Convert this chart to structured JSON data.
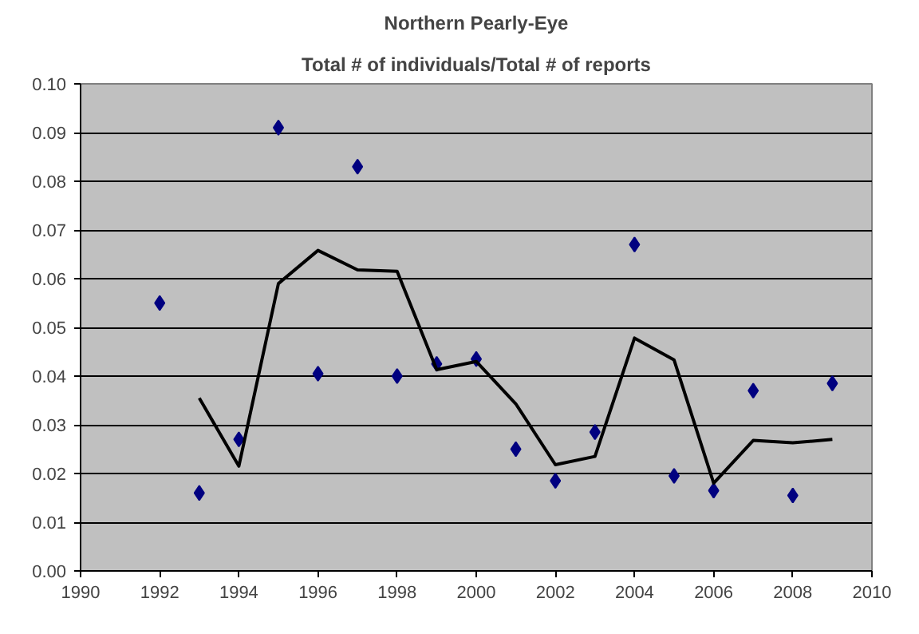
{
  "chart_data": {
    "type": "scatter",
    "title": "Northern Pearly-Eye",
    "subtitle": "Total # of individuals/Total # of reports",
    "xlim": [
      1990,
      2010
    ],
    "xticks": [
      1990,
      1992,
      1994,
      1996,
      1998,
      2000,
      2002,
      2004,
      2006,
      2008,
      2010
    ],
    "ylim": [
      0,
      0.1
    ],
    "yticks": [
      {
        "value": 0,
        "label": "0.00"
      },
      {
        "value": 0.01,
        "label": "0.01"
      },
      {
        "value": 0.02,
        "label": "0.02"
      },
      {
        "value": 0.03,
        "label": "0.03"
      },
      {
        "value": 0.04,
        "label": "0.04"
      },
      {
        "value": 0.05,
        "label": "0.05"
      },
      {
        "value": 0.06,
        "label": "0.06"
      },
      {
        "value": 0.07,
        "label": "0.07"
      },
      {
        "value": 0.08,
        "label": "0.08"
      },
      {
        "value": 0.09,
        "label": "0.09"
      },
      {
        "value": 0.1,
        "label": "0.10"
      }
    ],
    "grid": "y",
    "marker": "diamond",
    "series": [
      {
        "color": "#000080",
        "x": [
          1992,
          1993,
          1994,
          1995,
          1996,
          1997,
          1998,
          1999,
          2000,
          2001,
          2002,
          2003,
          2004,
          2005,
          2006,
          2007,
          2008,
          2009
        ],
        "values": [
          0.055,
          0.016,
          0.027,
          0.091,
          0.0405,
          0.083,
          0.04,
          0.0425,
          0.0435,
          0.025,
          0.0185,
          0.0285,
          0.067,
          0.0195,
          0.0165,
          0.037,
          0.0155,
          0.0385
        ]
      },
      {
        "type": "line",
        "marker": "none",
        "color": "#000000",
        "x": [
          1993,
          1994,
          1995,
          1996,
          1997,
          1998,
          1999,
          2000,
          2001,
          2002,
          2003,
          2004,
          2005,
          2006,
          2007,
          2008,
          2009
        ],
        "values": [
          0.0355,
          0.0215,
          0.059,
          0.0658,
          0.0618,
          0.0615,
          0.0413,
          0.043,
          0.0343,
          0.0218,
          0.0235,
          0.0478,
          0.0433,
          0.018,
          0.0268,
          0.0263,
          0.027
        ]
      }
    ]
  }
}
